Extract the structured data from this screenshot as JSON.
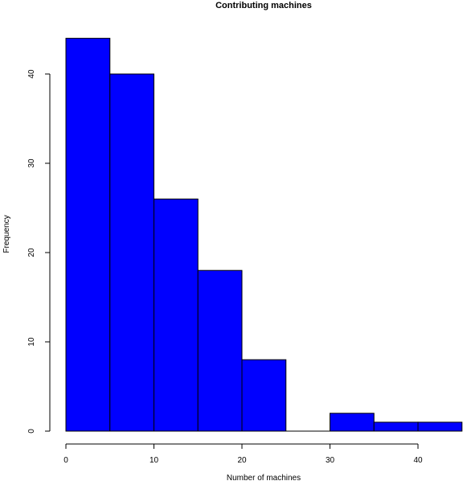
{
  "chart_data": {
    "type": "bar",
    "title": "Contributing machines",
    "xlabel": "Number of machines",
    "ylabel": "Frequency",
    "bins": [
      {
        "start": 0,
        "end": 5,
        "value": 44
      },
      {
        "start": 5,
        "end": 10,
        "value": 40
      },
      {
        "start": 10,
        "end": 15,
        "value": 26
      },
      {
        "start": 15,
        "end": 20,
        "value": 18
      },
      {
        "start": 20,
        "end": 25,
        "value": 8
      },
      {
        "start": 25,
        "end": 30,
        "value": 0
      },
      {
        "start": 30,
        "end": 35,
        "value": 2
      },
      {
        "start": 35,
        "end": 40,
        "value": 1
      },
      {
        "start": 40,
        "end": 45,
        "value": 1
      }
    ],
    "xlim": [
      0,
      45
    ],
    "ylim": [
      0,
      44
    ],
    "x_ticks": [
      "0",
      "10",
      "20",
      "30",
      "40"
    ],
    "y_ticks": [
      "0",
      "10",
      "20",
      "30",
      "40"
    ],
    "grid": false,
    "bar_color": "#0000ff",
    "edge_color": "#000000"
  }
}
